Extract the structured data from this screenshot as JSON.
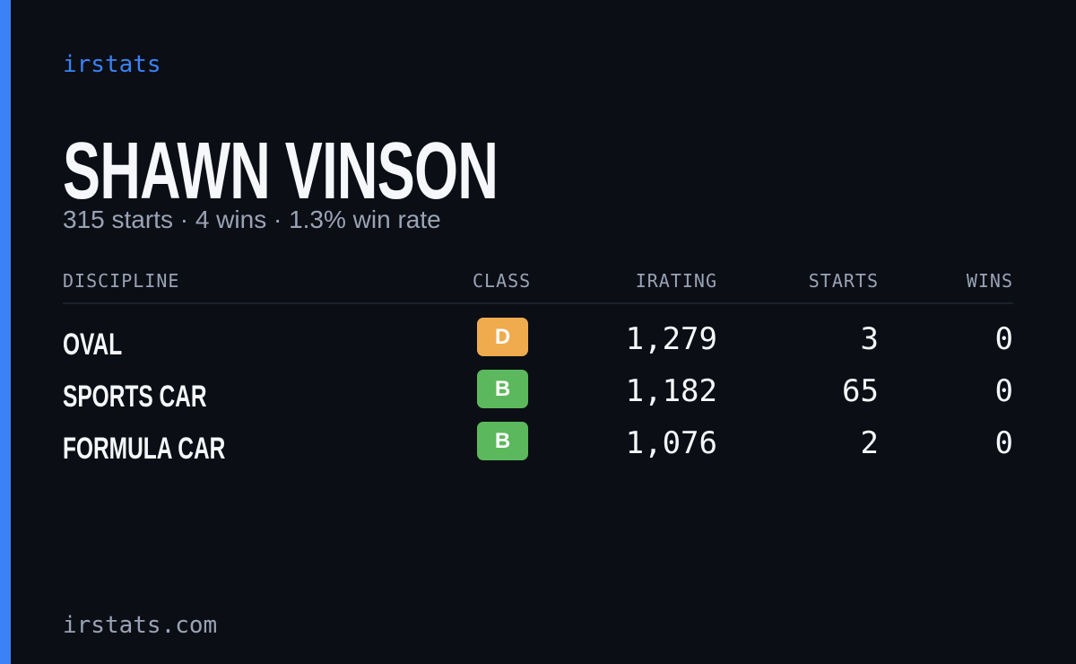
{
  "header": {
    "brand": "irstats",
    "name": "SHAWN VINSON",
    "summary": "315 starts · 4 wins · 1.3% win rate"
  },
  "table": {
    "columns": [
      "DISCIPLINE",
      "CLASS",
      "IRATING",
      "STARTS",
      "WINS"
    ],
    "rows": [
      {
        "discipline": "OVAL",
        "class": "D",
        "class_color": "#efab4e",
        "irating": "1,279",
        "starts": "3",
        "wins": "0"
      },
      {
        "discipline": "SPORTS CAR",
        "class": "B",
        "class_color": "#5cb85c",
        "irating": "1,182",
        "starts": "65",
        "wins": "0"
      },
      {
        "discipline": "FORMULA CAR",
        "class": "B",
        "class_color": "#5cb85c",
        "irating": "1,076",
        "starts": "2",
        "wins": "0"
      }
    ]
  },
  "footer": {
    "site": "irstats.com"
  }
}
